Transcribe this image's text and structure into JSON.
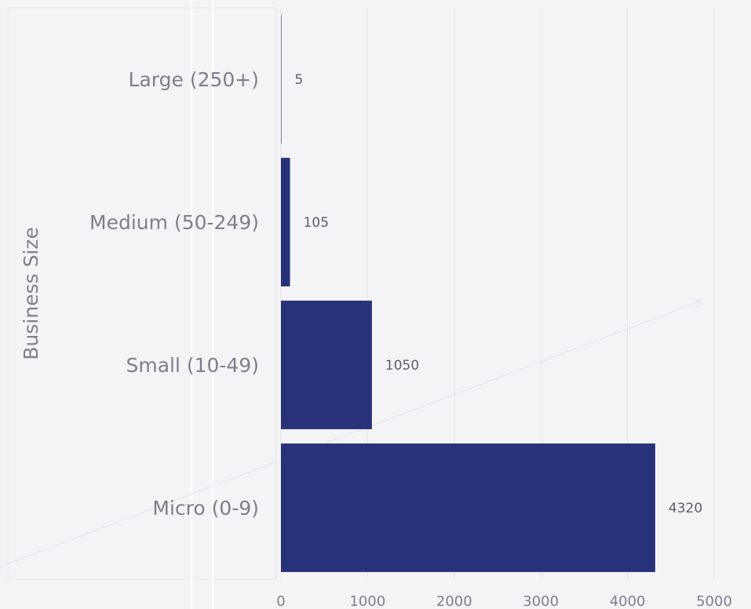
{
  "chart_data": {
    "type": "bar",
    "orientation": "horizontal",
    "categories": [
      "Micro (0-9)",
      "Small (10-49)",
      "Medium (50-249)",
      "Large (250+)"
    ],
    "values": [
      4320,
      1050,
      105,
      5
    ],
    "xlabel": "",
    "ylabel": "Business Size",
    "xlim": [
      0,
      5000
    ],
    "xticks": [
      "0",
      "1000",
      "2000",
      "3000",
      "4000",
      "5000"
    ],
    "bar_color": "#28327a",
    "grid": true,
    "legend": "none"
  }
}
